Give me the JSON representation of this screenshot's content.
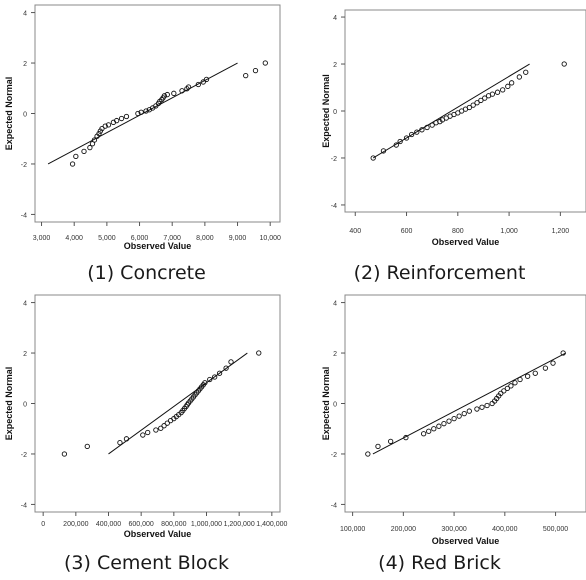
{
  "captions": [
    "(1)  Concrete",
    "(2)  Reinforcement",
    "(3)  Cement  Block",
    "(4)  Red  Brick"
  ],
  "chart_data": [
    {
      "type": "scatter",
      "xlabel": "Observed Value",
      "ylabel": "Expected Normal",
      "xlim": [
        2800,
        10300
      ],
      "ylim": [
        -4.3,
        4.3
      ],
      "xticks": [
        3000,
        4000,
        5000,
        6000,
        7000,
        8000,
        9000,
        10000
      ],
      "xtick_labels": [
        "3,000",
        "4,000",
        "5,000",
        "6,000",
        "7,000",
        "8,000",
        "9,000",
        "10,000"
      ],
      "yticks": [
        -4,
        -2,
        0,
        2,
        4
      ],
      "reference_line": {
        "x": [
          3200,
          9000
        ],
        "y": [
          -2.0,
          2.0
        ]
      },
      "points": [
        [
          3950,
          -2.0
        ],
        [
          4050,
          -1.7
        ],
        [
          4300,
          -1.5
        ],
        [
          4480,
          -1.35
        ],
        [
          4560,
          -1.2
        ],
        [
          4620,
          -1.05
        ],
        [
          4700,
          -0.9
        ],
        [
          4760,
          -0.8
        ],
        [
          4800,
          -0.7
        ],
        [
          4850,
          -0.6
        ],
        [
          4950,
          -0.5
        ],
        [
          5050,
          -0.45
        ],
        [
          5200,
          -0.35
        ],
        [
          5300,
          -0.28
        ],
        [
          5450,
          -0.2
        ],
        [
          5600,
          -0.12
        ],
        [
          5950,
          0.0
        ],
        [
          6050,
          0.05
        ],
        [
          6200,
          0.1
        ],
        [
          6300,
          0.15
        ],
        [
          6400,
          0.22
        ],
        [
          6500,
          0.3
        ],
        [
          6580,
          0.4
        ],
        [
          6620,
          0.48
        ],
        [
          6680,
          0.55
        ],
        [
          6720,
          0.62
        ],
        [
          6760,
          0.7
        ],
        [
          6850,
          0.75
        ],
        [
          7050,
          0.8
        ],
        [
          7300,
          0.9
        ],
        [
          7450,
          0.98
        ],
        [
          7500,
          1.05
        ],
        [
          7800,
          1.15
        ],
        [
          7950,
          1.25
        ],
        [
          8050,
          1.35
        ],
        [
          9250,
          1.5
        ],
        [
          9550,
          1.7
        ],
        [
          9850,
          2.0
        ]
      ]
    },
    {
      "type": "scatter",
      "xlabel": "Observed Value",
      "ylabel": "Expected Normal",
      "xlim": [
        360,
        1300
      ],
      "ylim": [
        -4.3,
        4.3
      ],
      "xticks": [
        400,
        600,
        800,
        1000,
        1200
      ],
      "xtick_labels": [
        "400",
        "600",
        "800",
        "1,000",
        "1,200"
      ],
      "yticks": [
        -4,
        -2,
        0,
        2,
        4
      ],
      "reference_line": {
        "x": [
          470,
          1080
        ],
        "y": [
          -2.0,
          2.0
        ]
      },
      "points": [
        [
          470,
          -2.0
        ],
        [
          510,
          -1.7
        ],
        [
          560,
          -1.45
        ],
        [
          575,
          -1.3
        ],
        [
          600,
          -1.15
        ],
        [
          620,
          -1.0
        ],
        [
          640,
          -0.9
        ],
        [
          660,
          -0.8
        ],
        [
          680,
          -0.7
        ],
        [
          700,
          -0.6
        ],
        [
          715,
          -0.5
        ],
        [
          730,
          -0.45
        ],
        [
          740,
          -0.38
        ],
        [
          755,
          -0.3
        ],
        [
          770,
          -0.22
        ],
        [
          785,
          -0.15
        ],
        [
          800,
          -0.08
        ],
        [
          815,
          0.0
        ],
        [
          830,
          0.08
        ],
        [
          845,
          0.15
        ],
        [
          860,
          0.25
        ],
        [
          875,
          0.35
        ],
        [
          890,
          0.45
        ],
        [
          905,
          0.55
        ],
        [
          920,
          0.65
        ],
        [
          935,
          0.72
        ],
        [
          955,
          0.8
        ],
        [
          975,
          0.9
        ],
        [
          995,
          1.05
        ],
        [
          1010,
          1.2
        ],
        [
          1040,
          1.45
        ],
        [
          1065,
          1.65
        ],
        [
          1215,
          2.0
        ]
      ]
    },
    {
      "type": "scatter",
      "xlabel": "Observed Value",
      "ylabel": "Expected Normal",
      "xlim": [
        -50000,
        1450000
      ],
      "ylim": [
        -4.3,
        4.3
      ],
      "xticks": [
        0,
        200000,
        400000,
        600000,
        800000,
        1000000,
        1200000,
        1400000
      ],
      "xtick_labels": [
        "0",
        "200,000",
        "400,000",
        "600,000",
        "800,000",
        "1,000,000",
        "1,200,000",
        "1,400,000"
      ],
      "yticks": [
        -4,
        -2,
        0,
        2,
        4
      ],
      "reference_line": {
        "x": [
          400000,
          1250000
        ],
        "y": [
          -2.0,
          2.0
        ]
      },
      "points": [
        [
          130000,
          -2.0
        ],
        [
          270000,
          -1.7
        ],
        [
          470000,
          -1.55
        ],
        [
          510000,
          -1.4
        ],
        [
          610000,
          -1.25
        ],
        [
          640000,
          -1.15
        ],
        [
          690000,
          -1.05
        ],
        [
          720000,
          -0.98
        ],
        [
          740000,
          -0.88
        ],
        [
          760000,
          -0.78
        ],
        [
          780000,
          -0.68
        ],
        [
          800000,
          -0.6
        ],
        [
          815000,
          -0.52
        ],
        [
          830000,
          -0.44
        ],
        [
          845000,
          -0.36
        ],
        [
          855000,
          -0.28
        ],
        [
          865000,
          -0.2
        ],
        [
          875000,
          -0.12
        ],
        [
          882000,
          -0.05
        ],
        [
          890000,
          0.02
        ],
        [
          900000,
          0.1
        ],
        [
          910000,
          0.18
        ],
        [
          920000,
          0.26
        ],
        [
          930000,
          0.34
        ],
        [
          940000,
          0.42
        ],
        [
          950000,
          0.5
        ],
        [
          960000,
          0.58
        ],
        [
          970000,
          0.66
        ],
        [
          980000,
          0.74
        ],
        [
          990000,
          0.82
        ],
        [
          1020000,
          0.95
        ],
        [
          1050000,
          1.05
        ],
        [
          1080000,
          1.2
        ],
        [
          1120000,
          1.4
        ],
        [
          1150000,
          1.65
        ],
        [
          1320000,
          2.0
        ]
      ]
    },
    {
      "type": "scatter",
      "xlabel": "Observed Value",
      "ylabel": "Expected Normal",
      "xlim": [
        85000,
        560000
      ],
      "ylim": [
        -4.3,
        4.3
      ],
      "xticks": [
        100000,
        200000,
        300000,
        400000,
        500000
      ],
      "xtick_labels": [
        "100,000",
        "200,000",
        "300,000",
        "400,000",
        "500,000"
      ],
      "yticks": [
        -4,
        -2,
        0,
        2,
        4
      ],
      "reference_line": {
        "x": [
          140000,
          520000
        ],
        "y": [
          -2.0,
          2.0
        ]
      },
      "points": [
        [
          130000,
          -2.0
        ],
        [
          150000,
          -1.7
        ],
        [
          175000,
          -1.5
        ],
        [
          205000,
          -1.35
        ],
        [
          240000,
          -1.2
        ],
        [
          250000,
          -1.1
        ],
        [
          260000,
          -1.0
        ],
        [
          270000,
          -0.9
        ],
        [
          280000,
          -0.8
        ],
        [
          290000,
          -0.7
        ],
        [
          300000,
          -0.6
        ],
        [
          310000,
          -0.5
        ],
        [
          320000,
          -0.4
        ],
        [
          330000,
          -0.3
        ],
        [
          345000,
          -0.22
        ],
        [
          355000,
          -0.15
        ],
        [
          365000,
          -0.08
        ],
        [
          375000,
          0.0
        ],
        [
          380000,
          0.1
        ],
        [
          384000,
          0.2
        ],
        [
          388000,
          0.3
        ],
        [
          392000,
          0.4
        ],
        [
          398000,
          0.5
        ],
        [
          405000,
          0.6
        ],
        [
          412000,
          0.7
        ],
        [
          420000,
          0.82
        ],
        [
          430000,
          0.95
        ],
        [
          445000,
          1.08
        ],
        [
          460000,
          1.2
        ],
        [
          480000,
          1.4
        ],
        [
          495000,
          1.6
        ],
        [
          515000,
          2.0
        ]
      ]
    }
  ]
}
